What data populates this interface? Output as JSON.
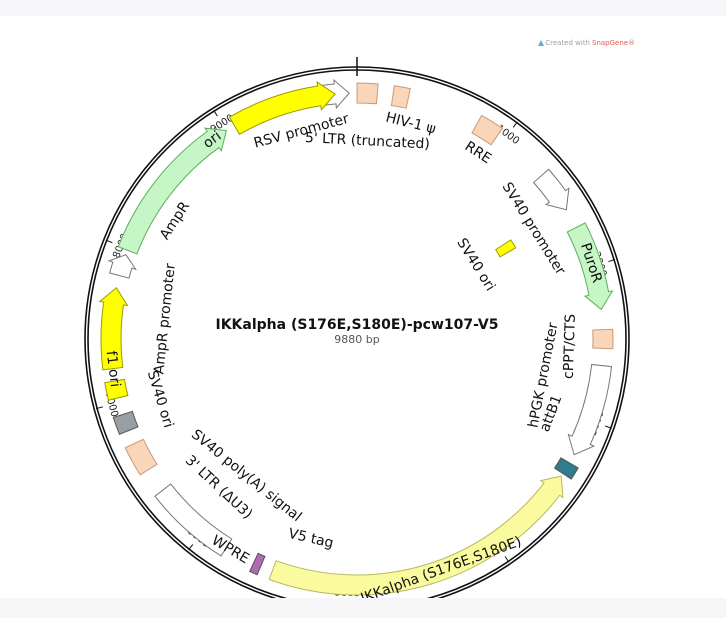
{
  "title": "IKKalpha (S176E,S180E)-pcw107-V5",
  "size_label": "9880 bp",
  "total_bp": 9880,
  "badge": {
    "prefix": "Created with",
    "brand": "SnapGene®"
  },
  "ticks": [
    1000,
    2000,
    3000,
    4000,
    5000,
    6000,
    7000,
    8000,
    9000
  ],
  "features": [
    {
      "name": "RSV promoter",
      "start": 9650,
      "end": 9830,
      "shape": "arrow-forward",
      "color": "#ffffff"
    },
    {
      "name": "5' LTR (truncated)",
      "start": 0,
      "end": 130,
      "shape": "box",
      "color": "#f9d6b9"
    },
    {
      "name": "HIV-1 ψ",
      "start": 230,
      "end": 330,
      "shape": "box",
      "color": "#f9d6b9"
    },
    {
      "name": "RRE",
      "start": 800,
      "end": 950,
      "shape": "box",
      "color": "#f9d6b9"
    },
    {
      "name": "SV40 promoter",
      "start": 1330,
      "end": 1600,
      "shape": "arrow-forward",
      "color": "#ffffff"
    },
    {
      "name": "PuroR",
      "start": 1730,
      "end": 2280,
      "shape": "arrow-forward",
      "color": "#c6f5c6"
    },
    {
      "name": "cPPT/CTS",
      "start": 2410,
      "end": 2530,
      "shape": "box",
      "color": "#f9d6b9"
    },
    {
      "name": "hPGK promoter",
      "start": 2640,
      "end": 3240,
      "shape": "arrow-forward",
      "color": "#ffffff"
    },
    {
      "name": "attB1",
      "start": 3300,
      "end": 3380,
      "shape": "box",
      "color": "#2e7d8c"
    },
    {
      "name": "IKKalpha (S176E,S180E)",
      "start": 3400,
      "end": 5490,
      "shape": "arrow-reverse",
      "color": "#fafa9e"
    },
    {
      "name": "V5 tag",
      "start": 5570,
      "end": 5620,
      "shape": "box",
      "color": "#b06ab0"
    },
    {
      "name": "WPRE",
      "start": 5820,
      "end": 6370,
      "shape": "box",
      "color": "#ffffff"
    },
    {
      "name": "3' LTR (ΔU3)",
      "start": 6530,
      "end": 6720,
      "shape": "box",
      "color": "#f9d6b9"
    },
    {
      "name": "SV40 poly(A) signal",
      "start": 6810,
      "end": 6920,
      "shape": "box",
      "color": "#999ea3"
    },
    {
      "name": "SV40 ori",
      "start": 7030,
      "end": 7140,
      "shape": "box",
      "color": "#ffff00"
    },
    {
      "name": "f1 ori",
      "start": 7220,
      "end": 7740,
      "shape": "arrow-forward",
      "color": "#ffff00"
    },
    {
      "name": "AmpR promoter",
      "start": 7820,
      "end": 7960,
      "shape": "arrow-forward",
      "color": "#ffffff"
    },
    {
      "name": "AmpR",
      "start": 7990,
      "end": 9000,
      "shape": "arrow-forward",
      "color": "#c6f5c6"
    },
    {
      "name": "ori",
      "start": 9060,
      "end": 9740,
      "shape": "arrow-forward",
      "color": "#ffff00"
    },
    {
      "name": "SV40 ori",
      "start": 1570,
      "end": 1650,
      "shape": "box",
      "color": "#ffff00"
    }
  ]
}
